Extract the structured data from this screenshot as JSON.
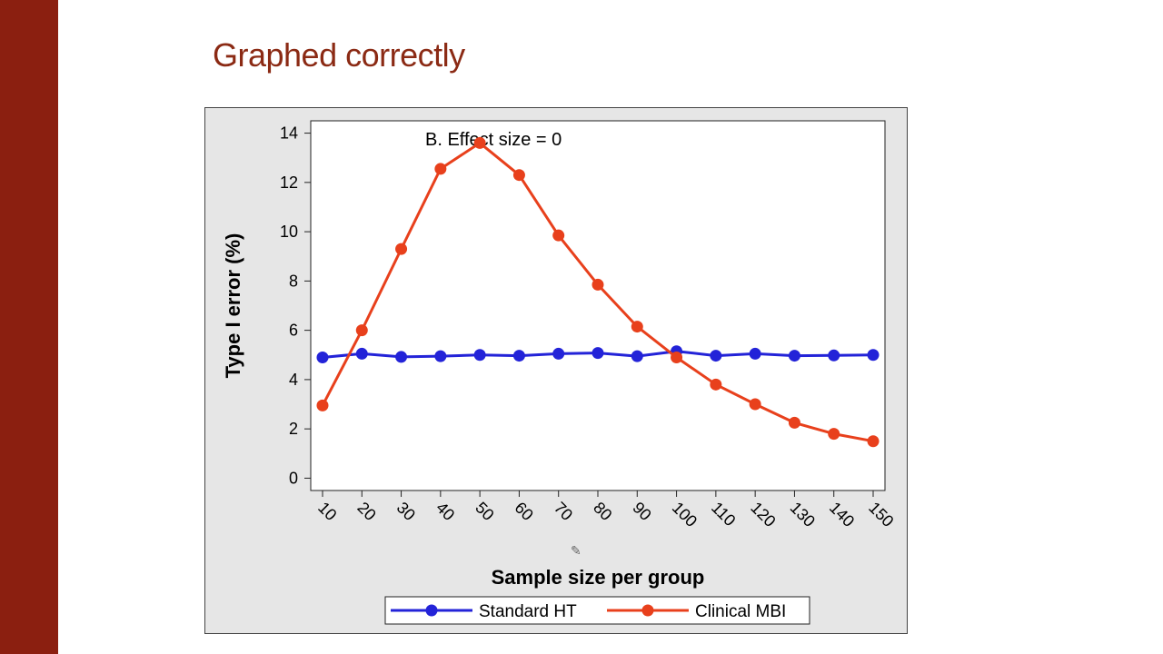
{
  "slide": {
    "title": "Graphed correctly"
  },
  "chart_data": {
    "type": "line",
    "title": "",
    "annotation": "B. Effect size = 0",
    "xlabel": "Sample size per group",
    "ylabel": "Type I error (%)",
    "x": [
      10,
      20,
      30,
      40,
      50,
      60,
      70,
      80,
      90,
      100,
      110,
      120,
      130,
      140,
      150
    ],
    "x_tick_labels": [
      "10",
      "20",
      "30",
      "40",
      "50",
      "60",
      "70",
      "80",
      "90",
      "100",
      "110",
      "120",
      "130",
      "140",
      "150"
    ],
    "xlim": [
      7,
      153
    ],
    "ylim": [
      -0.5,
      14.5
    ],
    "y_ticks": [
      0,
      2,
      4,
      6,
      8,
      10,
      12,
      14
    ],
    "grid": false,
    "legend_position": "bottom",
    "series": [
      {
        "name": "Standard HT",
        "color": "#2323d8",
        "values": [
          4.9,
          5.05,
          4.92,
          4.95,
          5.0,
          4.97,
          5.05,
          5.08,
          4.95,
          5.15,
          4.97,
          5.05,
          4.97,
          4.98,
          5.0
        ]
      },
      {
        "name": "Clinical MBI",
        "color": "#e8401c",
        "values": [
          2.95,
          6.0,
          9.3,
          12.55,
          13.6,
          12.3,
          9.85,
          7.85,
          6.15,
          4.9,
          3.8,
          3.0,
          2.25,
          1.8,
          1.5
        ]
      }
    ]
  }
}
